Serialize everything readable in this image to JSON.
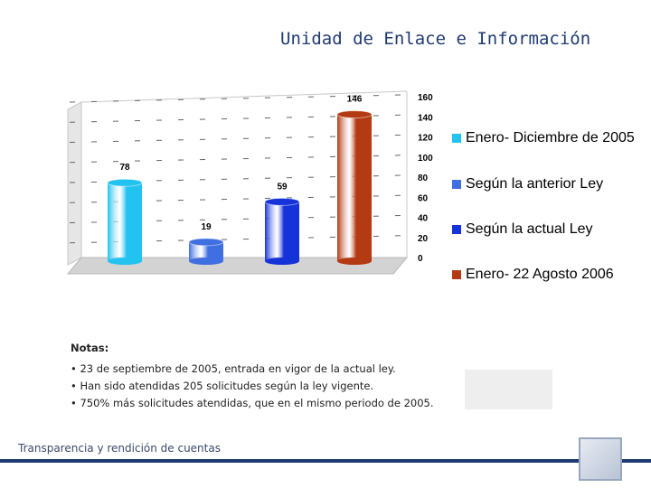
{
  "header": {
    "title": "Unidad de Enlace e Información"
  },
  "chart_data": {
    "type": "bar",
    "title": "",
    "xlabel": "",
    "ylabel": "",
    "ylim": [
      0,
      160
    ],
    "yticks": [
      0,
      20,
      40,
      60,
      80,
      100,
      120,
      140,
      160
    ],
    "grid": true,
    "legend_position": "right",
    "series": [
      {
        "name": "Enero- Diciembre de 2005",
        "value": 78,
        "color": "#22c3f0"
      },
      {
        "name": "Según la anterior Ley",
        "value": 19,
        "color": "#3f6fe0"
      },
      {
        "name": "Según la actual Ley",
        "value": 59,
        "color": "#1533d8"
      },
      {
        "name": "Enero- 22 Agosto 2006",
        "value": 146,
        "color": "#b33a12"
      }
    ]
  },
  "notes": {
    "title": "Notas:",
    "lines": [
      "• 23 de septiembre de 2005, entrada en vigor de la actual ley.",
      "• Han sido atendidas 205 solicitudes según la ley vigente.",
      "• 750% más solicitudes atendidas, que en el mismo periodo de 2005."
    ]
  },
  "footer": {
    "text": "Transparencia y rendición de cuentas"
  }
}
